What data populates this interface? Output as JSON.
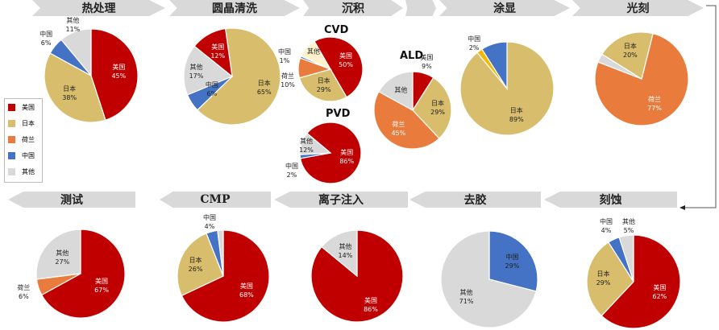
{
  "colors": {
    "us": "#C00000",
    "jp": "#D8BE6C",
    "nl": "#E97C3C",
    "cn": "#4472C4",
    "other": "#D9D9D9",
    "yellow": "#F5B800",
    "cream": "#FFF2CC"
  },
  "stages_top": [
    "热处理",
    "圆晶清洗",
    "沉积",
    "涂显",
    "光刻"
  ],
  "stages_bottom": [
    "测试",
    "CMP",
    "离子注入",
    "去胶",
    "刻蚀"
  ],
  "legend": [
    {
      "label": "美国",
      "color": "#C00000"
    },
    {
      "label": "日本",
      "color": "#D8BE6C"
    },
    {
      "label": "荷兰",
      "color": "#E97C3C"
    },
    {
      "label": "中国",
      "color": "#4472C4"
    },
    {
      "label": "其他",
      "color": "#D9D9D9"
    }
  ],
  "chart_data": [
    {
      "type": "pie",
      "title": "热处理",
      "slices": [
        {
          "name": "美国",
          "value": 45,
          "label": "45%"
        },
        {
          "name": "日本",
          "value": 38,
          "label": "38%"
        },
        {
          "name": "中国",
          "value": 6,
          "label": "6%"
        },
        {
          "name": "其他",
          "value": 11,
          "label": "11%"
        }
      ]
    },
    {
      "type": "pie",
      "title": "圆晶清洗",
      "slices": [
        {
          "name": "日本",
          "value": 65,
          "label": "65%"
        },
        {
          "name": "中国",
          "value": 6,
          "label": "6%"
        },
        {
          "name": "其他",
          "value": 17,
          "label": "17%"
        },
        {
          "name": "美国",
          "value": 12,
          "label": "12%"
        }
      ]
    },
    {
      "type": "pie",
      "title": "CVD",
      "stage": "沉积",
      "slices": [
        {
          "name": "美国",
          "value": 50,
          "label": "50%"
        },
        {
          "name": "日本",
          "value": 29,
          "label": "29%"
        },
        {
          "name": "荷兰",
          "value": 10,
          "label": "10%"
        },
        {
          "name": "中国",
          "value": 1,
          "label": "1%"
        },
        {
          "name": "其他",
          "value": 10,
          "label": ""
        }
      ]
    },
    {
      "type": "pie",
      "title": "PVD",
      "stage": "沉积",
      "slices": [
        {
          "name": "美国",
          "value": 86,
          "label": "86%"
        },
        {
          "name": "中国",
          "value": 2,
          "label": "2%"
        },
        {
          "name": "其他",
          "value": 12,
          "label": "12%"
        }
      ]
    },
    {
      "type": "pie",
      "title": "ALD",
      "stage": "沉积",
      "slices": [
        {
          "name": "美国",
          "value": 9,
          "label": "9%"
        },
        {
          "name": "日本",
          "value": 29,
          "label": "29%"
        },
        {
          "name": "荷兰",
          "value": 45,
          "label": "45%"
        },
        {
          "name": "其他",
          "value": 17,
          "label": ""
        }
      ]
    },
    {
      "type": "pie",
      "title": "涂显",
      "slices": [
        {
          "name": "日本",
          "value": 89,
          "label": "89%"
        },
        {
          "name": "中国",
          "value": 2,
          "label": "2%"
        },
        {
          "name": "",
          "value": 9,
          "label": ""
        }
      ]
    },
    {
      "type": "pie",
      "title": "光刻",
      "slices": [
        {
          "name": "荷兰",
          "value": 77,
          "label": "77%"
        },
        {
          "name": "",
          "value": 3,
          "label": ""
        },
        {
          "name": "日本",
          "value": 20,
          "label": "20%"
        }
      ]
    },
    {
      "type": "pie",
      "title": "测试",
      "slices": [
        {
          "name": "美国",
          "value": 67,
          "label": "67%"
        },
        {
          "name": "荷兰",
          "value": 6,
          "label": "6%"
        },
        {
          "name": "其他",
          "value": 27,
          "label": "27%"
        }
      ]
    },
    {
      "type": "pie",
      "title": "CMP",
      "slices": [
        {
          "name": "美国",
          "value": 68,
          "label": "68%"
        },
        {
          "name": "日本",
          "value": 26,
          "label": "26%"
        },
        {
          "name": "中国",
          "value": 4,
          "label": "4%"
        },
        {
          "name": "",
          "value": 2,
          "label": ""
        }
      ]
    },
    {
      "type": "pie",
      "title": "离子注入",
      "slices": [
        {
          "name": "美国",
          "value": 86,
          "label": "86%"
        },
        {
          "name": "其他",
          "value": 14,
          "label": "14%"
        }
      ]
    },
    {
      "type": "pie",
      "title": "去胶",
      "slices": [
        {
          "name": "中国",
          "value": 29,
          "label": "29%"
        },
        {
          "name": "其他",
          "value": 71,
          "label": "71%"
        }
      ]
    },
    {
      "type": "pie",
      "title": "刻蚀",
      "slices": [
        {
          "name": "美国",
          "value": 62,
          "label": "62%"
        },
        {
          "name": "日本",
          "value": 29,
          "label": "29%"
        },
        {
          "name": "中国",
          "value": 4,
          "label": "4%"
        },
        {
          "name": "其他",
          "value": 5,
          "label": "5%"
        }
      ]
    }
  ]
}
